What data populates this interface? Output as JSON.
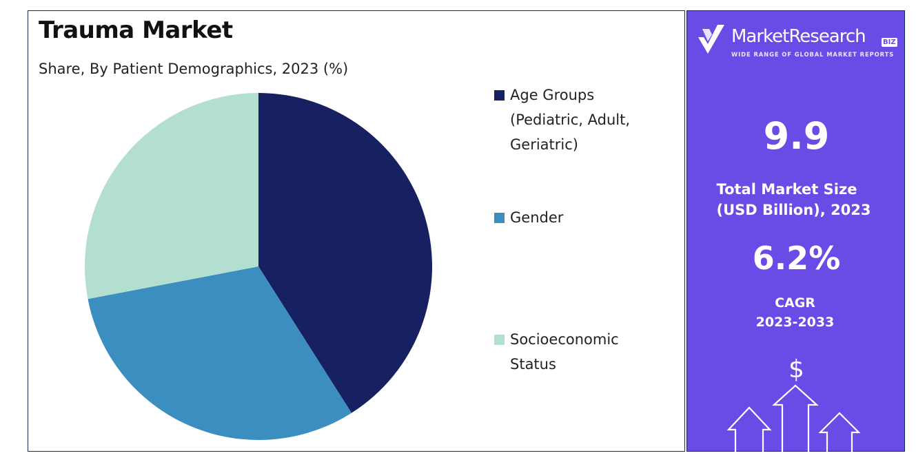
{
  "chart_data": {
    "type": "pie",
    "title": "Trauma Market",
    "subtitle": "Share, By Patient Demographics, 2023 (%)",
    "categories": [
      "Age Groups (Pediatric, Adult, Geriatric)",
      "Gender",
      "Socioeconomic Status"
    ],
    "values": [
      41,
      31,
      28
    ],
    "colors": [
      "#172060",
      "#3d8ec0",
      "#b2dfd0"
    ],
    "legend_position": "right"
  },
  "legend": [
    {
      "label": "Age Groups (Pediatric, Adult, Geriatric)",
      "color": "#172060"
    },
    {
      "label": "Gender",
      "color": "#3d8ec0"
    },
    {
      "label": "Socioeconomic Status",
      "color": "#b2dfd0"
    }
  ],
  "side_panel": {
    "brand_name": "MarketResearch",
    "brand_badge": "BIZ",
    "brand_tagline": "WIDE RANGE OF GLOBAL MARKET REPORTS",
    "market_size_value": "9.9",
    "market_size_label_line1": "Total Market Size",
    "market_size_label_line2": "(USD Billion), 2023",
    "cagr_value": "6.2%",
    "cagr_label_line1": "CAGR",
    "cagr_label_line2": "2023-2033",
    "currency_symbol": "$",
    "accent_color": "#6a4be6"
  }
}
